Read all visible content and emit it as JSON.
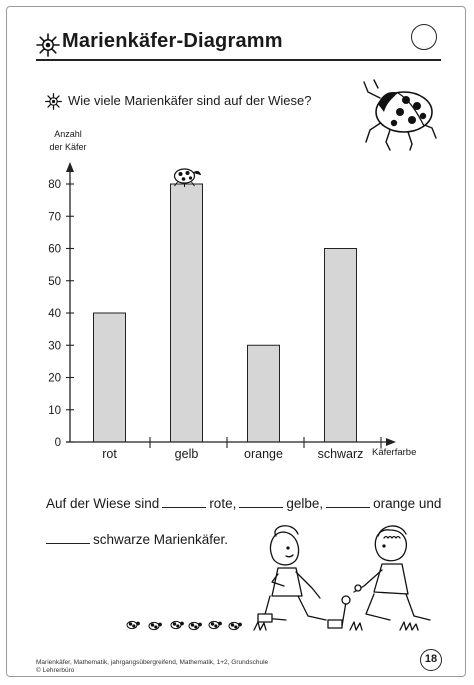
{
  "header": {
    "title": "Marienkäfer-Diagramm",
    "question": "Wie viele Marienkäfer sind auf der Wiese?"
  },
  "chart_data": {
    "type": "bar",
    "title": "",
    "categories": [
      "rot",
      "gelb",
      "orange",
      "schwarz"
    ],
    "values": [
      40,
      80,
      30,
      60
    ],
    "ylabel_lines": [
      "Anzahl",
      "der Käfer"
    ],
    "xlabel": "Käferfarbe",
    "ylim": [
      0,
      80
    ],
    "yticks": [
      0,
      10,
      20,
      30,
      40,
      50,
      60,
      70,
      80
    ],
    "grid": false,
    "bar_color": "#d6d6d6"
  },
  "exercise": {
    "line1": [
      "Auf der Wiese sind",
      "rote,",
      "gelbe,",
      "orange und"
    ],
    "line2": [
      "schwarze Marienkäfer."
    ]
  },
  "footer": {
    "line1": "Marienkäfer, Mathematik, jahrgangsübergreifend, Mathematik, 1+2, Grundschule",
    "line2": "© Lehrerbüro"
  },
  "page_number": "18",
  "icons": [
    "sun-star-icon",
    "ladybug-illustration",
    "children-illustration"
  ]
}
